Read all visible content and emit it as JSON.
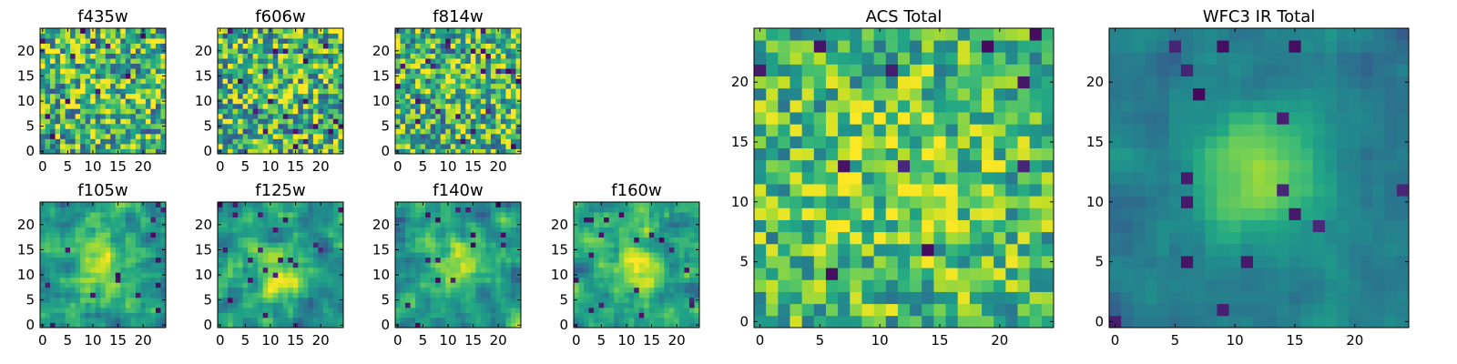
{
  "chart_data": [
    {
      "type": "heatmap",
      "title": "f435w",
      "colormap": "viridis",
      "size": 25,
      "seed": 11,
      "peak": 0.08,
      "min": -1,
      "max": 1,
      "noise": 0.4,
      "smooth": 0,
      "base": 0.65,
      "xticks": [
        0,
        5,
        10,
        15,
        20
      ],
      "yticks": [
        0,
        5,
        10,
        15,
        20
      ],
      "xtick_labels": [
        "0",
        "5",
        "10",
        "15",
        "20"
      ],
      "ytick_labels": [
        "0",
        "5",
        "10",
        "15",
        "20"
      ]
    },
    {
      "type": "heatmap",
      "title": "f606w",
      "colormap": "viridis",
      "size": 25,
      "seed": 22,
      "peak": 0.08,
      "min": -1,
      "max": 1,
      "noise": 0.4,
      "smooth": 0,
      "base": 0.65,
      "xticks": [
        0,
        5,
        10,
        15,
        20
      ],
      "yticks": [
        0,
        5,
        10,
        15,
        20
      ],
      "xtick_labels": [
        "0",
        "5",
        "10",
        "15",
        "20"
      ],
      "ytick_labels": [
        "0",
        "5",
        "10",
        "15",
        "20"
      ]
    },
    {
      "type": "heatmap",
      "title": "f814w",
      "colormap": "viridis",
      "size": 25,
      "seed": 33,
      "peak": 0.08,
      "min": -1,
      "max": 1,
      "noise": 0.4,
      "smooth": 0,
      "base": 0.65,
      "xticks": [
        0,
        5,
        10,
        15,
        20
      ],
      "yticks": [
        0,
        5,
        10,
        15,
        20
      ],
      "xtick_labels": [
        "0",
        "5",
        "10",
        "15",
        "20"
      ],
      "ytick_labels": [
        "0",
        "5",
        "10",
        "15",
        "20"
      ]
    },
    {
      "type": "heatmap",
      "title": "f105w",
      "colormap": "viridis",
      "size": 25,
      "seed": 44,
      "peak": 0.3,
      "min": -1,
      "max": 1,
      "noise": 0.3,
      "smooth": 1,
      "base": 0.55,
      "xticks": [
        0,
        5,
        10,
        15,
        20
      ],
      "yticks": [
        0,
        5,
        10,
        15,
        20
      ],
      "xtick_labels": [
        "0",
        "5",
        "10",
        "15",
        "20"
      ],
      "ytick_labels": [
        "0",
        "5",
        "10",
        "15",
        "20"
      ]
    },
    {
      "type": "heatmap",
      "title": "f125w",
      "colormap": "viridis",
      "size": 25,
      "seed": 55,
      "peak": 0.3,
      "min": -1,
      "max": 1,
      "noise": 0.3,
      "smooth": 1,
      "base": 0.55,
      "xticks": [
        0,
        5,
        10,
        15,
        20
      ],
      "yticks": [
        0,
        5,
        10,
        15,
        20
      ],
      "xtick_labels": [
        "0",
        "5",
        "10",
        "15",
        "20"
      ],
      "ytick_labels": [
        "0",
        "5",
        "10",
        "15",
        "20"
      ]
    },
    {
      "type": "heatmap",
      "title": "f140w",
      "colormap": "viridis",
      "size": 25,
      "seed": 66,
      "peak": 0.3,
      "min": -1,
      "max": 1,
      "noise": 0.3,
      "smooth": 1,
      "base": 0.55,
      "xticks": [
        0,
        5,
        10,
        15,
        20
      ],
      "yticks": [
        0,
        5,
        10,
        15,
        20
      ],
      "xtick_labels": [
        "0",
        "5",
        "10",
        "15",
        "20"
      ],
      "ytick_labels": [
        "0",
        "5",
        "10",
        "15",
        "20"
      ]
    },
    {
      "type": "heatmap",
      "title": "f160w",
      "colormap": "viridis",
      "size": 25,
      "seed": 77,
      "peak": 0.3,
      "min": -1,
      "max": 1,
      "noise": 0.3,
      "smooth": 1,
      "base": 0.55,
      "xticks": [
        0,
        5,
        10,
        15,
        20
      ],
      "yticks": [
        0,
        5,
        10,
        15,
        20
      ],
      "xtick_labels": [
        "0",
        "5",
        "10",
        "15",
        "20"
      ],
      "ytick_labels": [
        "0",
        "5",
        "10",
        "15",
        "20"
      ]
    },
    {
      "type": "heatmap",
      "title": "ACS Total",
      "colormap": "viridis",
      "size": 25,
      "seed": 88,
      "peak": 0.15,
      "min": -1,
      "max": 1,
      "noise": 0.3,
      "smooth": 0,
      "base": 0.68,
      "xticks": [
        0,
        5,
        10,
        15,
        20
      ],
      "yticks": [
        0,
        5,
        10,
        15,
        20
      ],
      "xtick_labels": [
        "0",
        "5",
        "10",
        "15",
        "20"
      ],
      "ytick_labels": [
        "0",
        "5",
        "10",
        "15",
        "20"
      ]
    },
    {
      "type": "heatmap",
      "title": "WFC3 IR Total",
      "colormap": "viridis",
      "size": 25,
      "seed": 99,
      "peak": 0.45,
      "min": -1,
      "max": 1,
      "noise": 0.12,
      "smooth": 1,
      "base": 0.42,
      "xticks": [
        0,
        5,
        10,
        15,
        20
      ],
      "yticks": [
        0,
        5,
        10,
        15,
        20
      ],
      "xtick_labels": [
        "0",
        "5",
        "10",
        "15",
        "20"
      ],
      "ytick_labels": [
        "0",
        "5",
        "10",
        "15",
        "20"
      ]
    }
  ]
}
